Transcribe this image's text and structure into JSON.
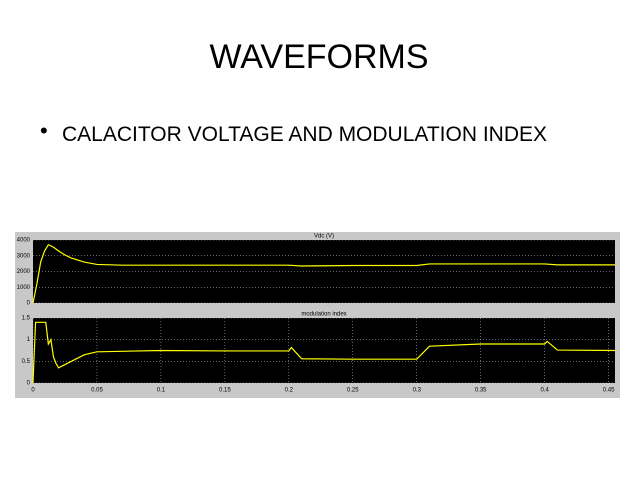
{
  "slide": {
    "title": "WAVEFORMS",
    "bullet": "CALACITOR VOLTAGE AND MODULATION INDEX"
  },
  "chart_data": [
    {
      "type": "line",
      "title": "Vdc (V)",
      "x": [
        0,
        0.003,
        0.006,
        0.009,
        0.012,
        0.016,
        0.02,
        0.025,
        0.03,
        0.04,
        0.05,
        0.07,
        0.1,
        0.15,
        0.2,
        0.21,
        0.25,
        0.3,
        0.31,
        0.35,
        0.4,
        0.41,
        0.455
      ],
      "series": [
        {
          "name": "Vdc",
          "color": "#ffff00",
          "values": [
            0,
            1200,
            2600,
            3300,
            3700,
            3550,
            3300,
            3050,
            2850,
            2600,
            2450,
            2400,
            2400,
            2400,
            2400,
            2350,
            2380,
            2380,
            2480,
            2480,
            2480,
            2420,
            2420
          ]
        }
      ],
      "xlim": [
        0,
        0.455
      ],
      "ylim": [
        0,
        4000
      ],
      "yticks": [
        0,
        1000,
        2000,
        3000,
        4000
      ],
      "grid": true
    },
    {
      "type": "line",
      "title": "modulation index",
      "x": [
        0,
        0.002,
        0.004,
        0.01,
        0.012,
        0.014,
        0.016,
        0.018,
        0.02,
        0.03,
        0.04,
        0.05,
        0.1,
        0.15,
        0.2,
        0.202,
        0.21,
        0.25,
        0.3,
        0.31,
        0.35,
        0.4,
        0.402,
        0.41,
        0.455
      ],
      "series": [
        {
          "name": "modulation index",
          "color": "#ffff00",
          "values": [
            0,
            1.4,
            1.4,
            1.4,
            0.9,
            1.0,
            0.6,
            0.45,
            0.35,
            0.5,
            0.65,
            0.72,
            0.75,
            0.74,
            0.74,
            0.82,
            0.56,
            0.55,
            0.55,
            0.85,
            0.9,
            0.9,
            0.96,
            0.76,
            0.75
          ]
        }
      ],
      "xlim": [
        0,
        0.455
      ],
      "ylim": [
        0,
        1.5
      ],
      "yticks": [
        0,
        0.5,
        1,
        1.5
      ],
      "xticks": [
        0,
        0.05,
        0.1,
        0.15,
        0.2,
        0.25,
        0.3,
        0.35,
        0.4,
        0.45
      ],
      "grid": true
    }
  ]
}
